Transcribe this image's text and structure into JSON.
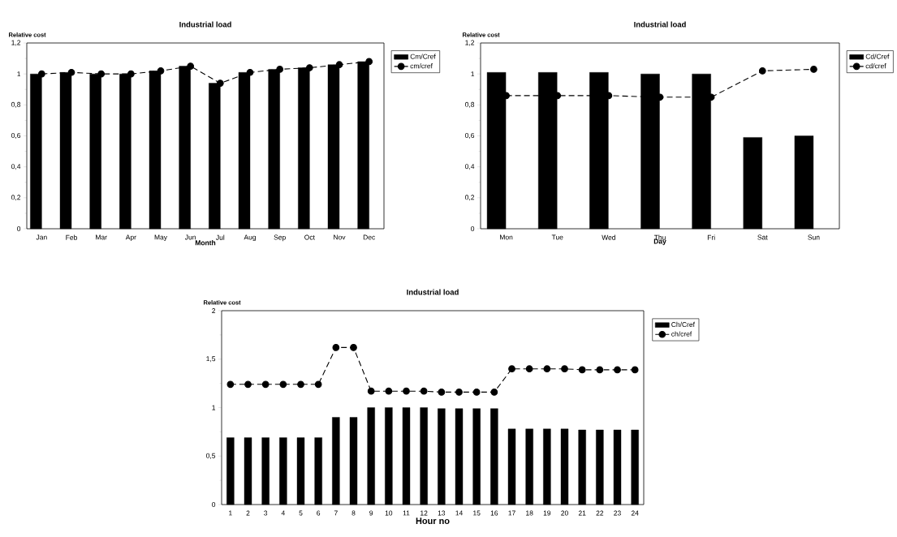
{
  "chart_data": [
    {
      "type": "bar",
      "title": "Industrial load",
      "xlabel": "Month",
      "ylabel": "Relative cost",
      "categories": [
        "Jan",
        "Feb",
        "Mar",
        "Apr",
        "May",
        "Jun",
        "Jul",
        "Aug",
        "Sep",
        "Oct",
        "Nov",
        "Dec"
      ],
      "series": [
        {
          "name": "Cm/Cref",
          "color": "#000000",
          "values": [
            1.0,
            1.01,
            1.0,
            1.0,
            1.02,
            1.05,
            0.94,
            1.01,
            1.03,
            1.04,
            1.06,
            1.08
          ]
        },
        {
          "name": "cm/cref",
          "type": "line",
          "color": "#000000",
          "values": [
            1.0,
            1.01,
            1.0,
            1.0,
            1.02,
            1.05,
            0.94,
            1.01,
            1.03,
            1.04,
            1.06,
            1.08
          ]
        }
      ],
      "ylim": [
        0,
        1.2
      ],
      "yticks": [
        0,
        {
          "value": 0.2,
          "label": "0,2"
        },
        {
          "value": 0.4,
          "label": "0,4"
        },
        {
          "value": 0.6,
          "label": "0,6"
        },
        {
          "value": 0.8,
          "label": "0,8"
        },
        1,
        {
          "value": 1.2,
          "label": "1,2"
        }
      ],
      "legend": "right",
      "marker": "circle",
      "line_style": "dashed"
    },
    {
      "type": "bar",
      "title": "Industrial load",
      "xlabel": "Day",
      "ylabel": "Relative cost",
      "categories": [
        "Mon",
        "Tue",
        "Wed",
        "Thu",
        "Fri",
        "Sat",
        "Sun"
      ],
      "series": [
        {
          "name": "Cd/Cref",
          "color": "#000000",
          "values": [
            1.01,
            1.01,
            1.01,
            1.0,
            1.0,
            0.59,
            0.6
          ]
        },
        {
          "name": "cd/cref",
          "type": "line",
          "color": "#000000",
          "values": [
            0.86,
            0.86,
            0.86,
            0.85,
            0.85,
            1.02,
            1.03
          ]
        }
      ],
      "ylim": [
        0,
        1.2
      ],
      "yticks": [
        0,
        {
          "value": 0.2,
          "label": "0,2"
        },
        {
          "value": 0.4,
          "label": "0,4"
        },
        {
          "value": 0.6,
          "label": "0,6"
        },
        {
          "value": 0.8,
          "label": "0,8"
        },
        1,
        {
          "value": 1.2,
          "label": "1,2"
        }
      ],
      "legend": "right",
      "marker": "circle",
      "line_style": "dashed"
    },
    {
      "type": "bar",
      "title": "Industrial load",
      "xlabel": "Hour no",
      "ylabel": "Relative cost",
      "categories": [
        "1",
        "2",
        "3",
        "4",
        "5",
        "6",
        "7",
        "8",
        "9",
        "10",
        "11",
        "12",
        "13",
        "14",
        "15",
        "16",
        "17",
        "18",
        "19",
        "20",
        "21",
        "22",
        "23",
        "24"
      ],
      "series": [
        {
          "name": "Ch/Cref",
          "color": "#000000",
          "values": [
            0.69,
            0.69,
            0.69,
            0.69,
            0.69,
            0.69,
            0.9,
            0.9,
            1.0,
            1.0,
            1.0,
            1.0,
            0.99,
            0.99,
            0.99,
            0.99,
            0.78,
            0.78,
            0.78,
            0.78,
            0.77,
            0.77,
            0.77,
            0.77
          ]
        },
        {
          "name": "ch/cref",
          "type": "line",
          "color": "#000000",
          "values": [
            1.24,
            1.24,
            1.24,
            1.24,
            1.24,
            1.24,
            1.62,
            1.62,
            1.17,
            1.17,
            1.17,
            1.17,
            1.16,
            1.16,
            1.16,
            1.16,
            1.4,
            1.4,
            1.4,
            1.4,
            1.39,
            1.39,
            1.39,
            1.39
          ]
        }
      ],
      "ylim": [
        0,
        2
      ],
      "yticks": [
        0,
        {
          "value": 0.5,
          "label": "0,5"
        },
        1,
        {
          "value": 1.5,
          "label": "1,5"
        },
        2
      ],
      "legend": "right",
      "marker": "circle",
      "line_style": "dashed"
    }
  ]
}
